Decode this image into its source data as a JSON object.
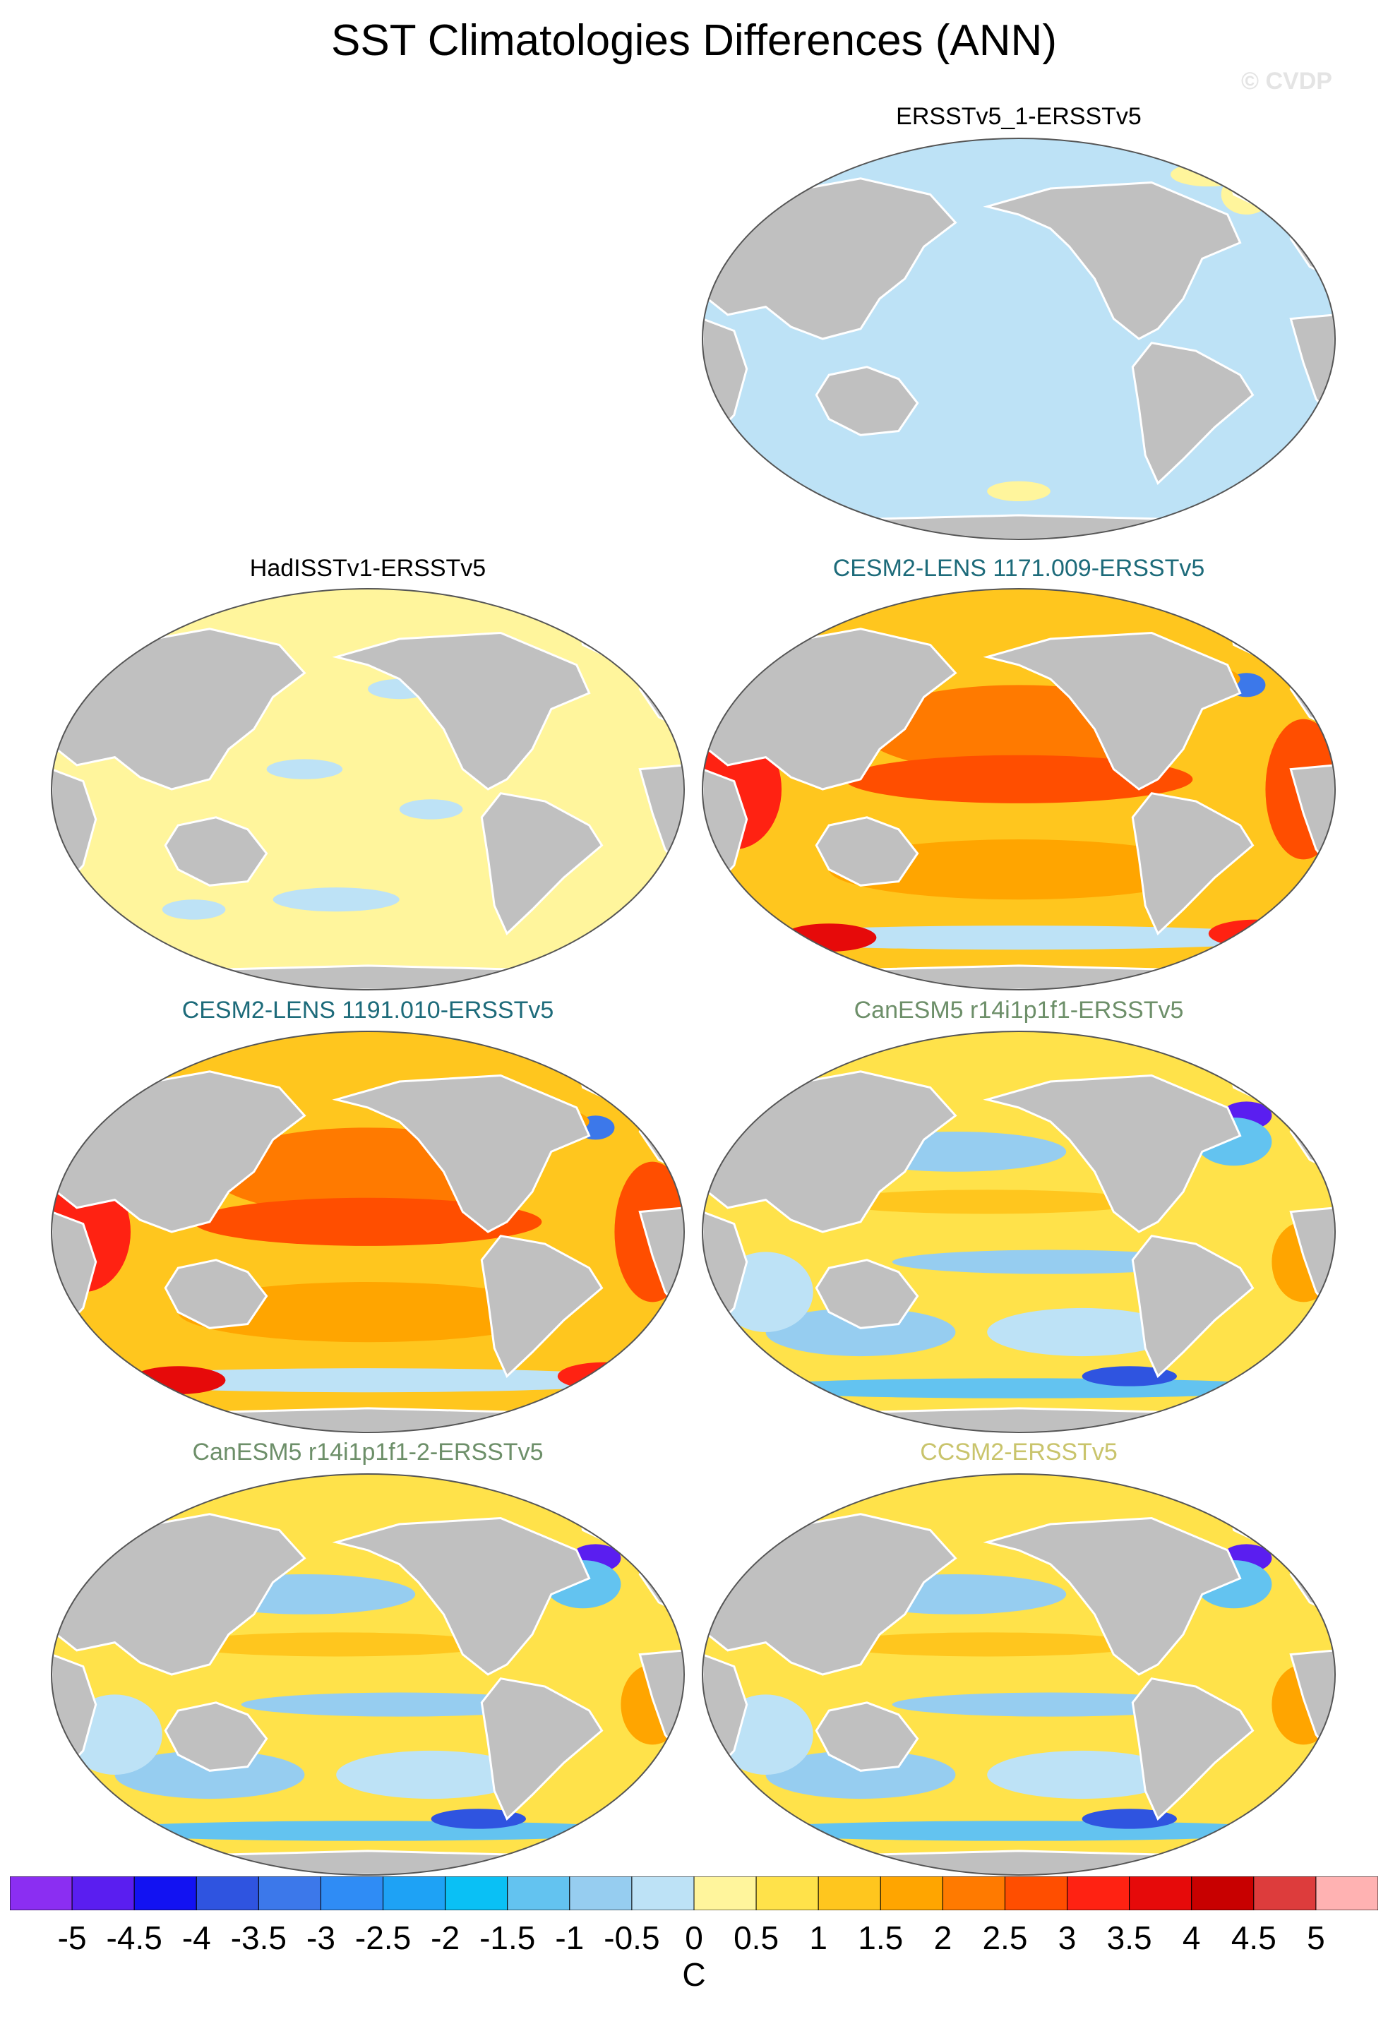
{
  "title": "SST Climatologies Differences (ANN)",
  "watermark": "© CVDP",
  "colors": {
    "land": "#c0c0c0",
    "coast": "#ffffff",
    "outline": "#555555"
  },
  "panels": [
    {
      "title": "ERSSTv5_1-ERSSTv5",
      "title_color": "#000000",
      "scheme": "flat_neg"
    },
    {
      "title": "HadISSTv1-ERSSTv5",
      "title_color": "#000000",
      "scheme": "flat_pos"
    },
    {
      "title": "CESM2-LENS 1171.009-ERSSTv5",
      "title_color": "#1d6b7a",
      "scheme": "warm"
    },
    {
      "title": "CESM2-LENS 1191.010-ERSSTv5",
      "title_color": "#1d6b7a",
      "scheme": "warm"
    },
    {
      "title": "CanESM5 r14i1p1f1-ERSSTv5",
      "title_color": "#6d8f69",
      "scheme": "mixed"
    },
    {
      "title": "CanESM5 r14i1p1f1-2-ERSSTv5",
      "title_color": "#6d8f69",
      "scheme": "mixed"
    },
    {
      "title": "CCSM2-ERSSTv5",
      "title_color": "#c9c46c",
      "scheme": "mixed"
    }
  ],
  "colorbar": {
    "colors": [
      "#8b2ef2",
      "#5a1ef0",
      "#1212f2",
      "#2f54e0",
      "#3c78ea",
      "#2f8cf5",
      "#1ea2f5",
      "#0ac0f5",
      "#63c3f0",
      "#96cdf0",
      "#bde2f6",
      "#fff59c",
      "#ffe24a",
      "#ffc61e",
      "#ffa500",
      "#ff7a00",
      "#ff4e00",
      "#ff2212",
      "#e60a0a",
      "#c80000",
      "#dd3c3c",
      "#ffb2b2"
    ],
    "labels": [
      "-5",
      "-4.5",
      "-4",
      "-3.5",
      "-3",
      "-2.5",
      "-2",
      "-1.5",
      "-1",
      "-0.5",
      "0",
      "0.5",
      "1",
      "1.5",
      "2",
      "2.5",
      "3",
      "3.5",
      "4",
      "4.5",
      "5"
    ],
    "unit": "C"
  }
}
